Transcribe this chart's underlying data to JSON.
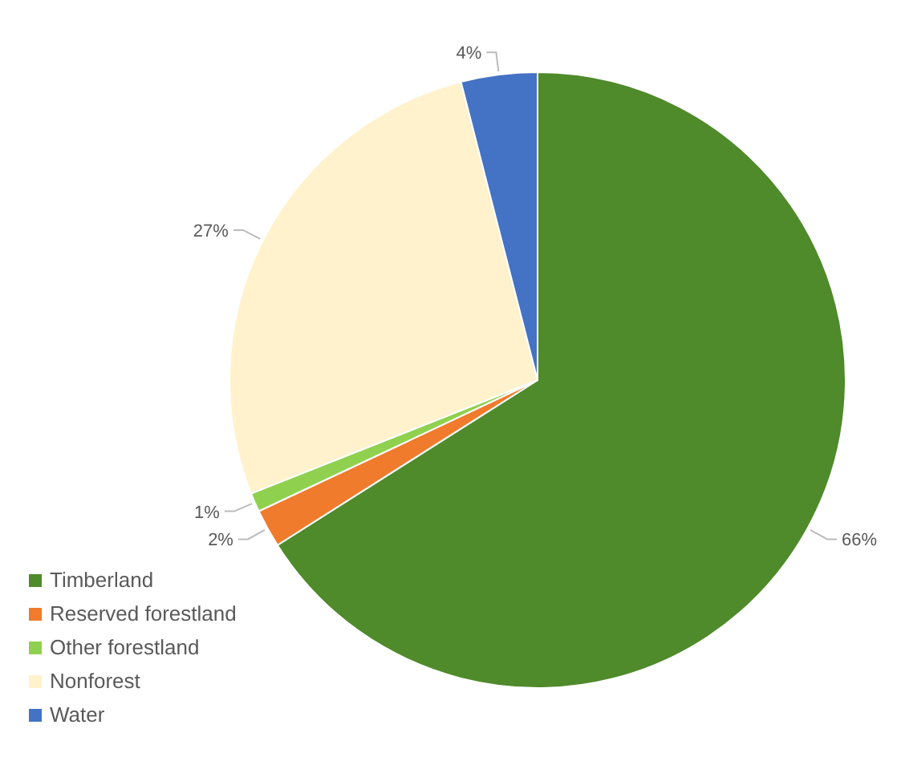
{
  "chart_data": {
    "type": "pie",
    "categories": [
      "Timberland",
      "Reserved forestland",
      "Other forestland",
      "Nonforest",
      "Water"
    ],
    "values": [
      66,
      2,
      1,
      27,
      4
    ],
    "colors": [
      "#4f8a2b",
      "#f07b2c",
      "#8fd14f",
      "#fff2cc",
      "#4472c4"
    ],
    "value_labels": [
      "66%",
      "2%",
      "1%",
      "27%",
      "4%"
    ],
    "legend": "bottom left"
  }
}
